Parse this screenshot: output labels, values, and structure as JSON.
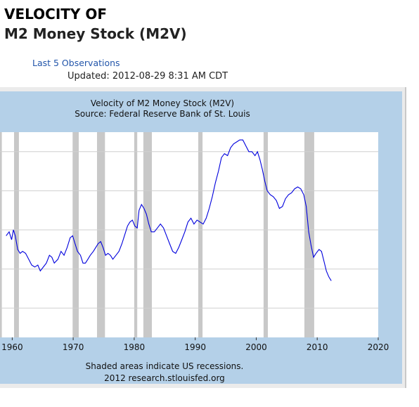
{
  "header": {
    "title_line1": "VELOCITY OF",
    "title_line2": "M2 Money Stock (M2V)",
    "last_obs_link": "Last 5 Observations",
    "updated": "Updated: 2012-08-29 8:31 AM CDT"
  },
  "colors": {
    "background": "#b4d0e8",
    "plot_background": "#ffffff",
    "line": "#0000dd",
    "recession_bar": "#c8c8c8",
    "frame": "#ebebeb"
  },
  "chart_data": {
    "type": "line",
    "title": "Velocity of M2 Money Stock (M2V)",
    "subtitle": "Source: Federal Reserve Bank of St. Louis",
    "xlabel": "",
    "ylabel": "",
    "xlim": [
      1958,
      2020
    ],
    "ylim": [
      1.2,
      2.25
    ],
    "x_ticks": [
      1960,
      1970,
      1980,
      1990,
      2000,
      2010,
      2020
    ],
    "y_gridlines": [
      1.35,
      1.55,
      1.75,
      1.95,
      2.15
    ],
    "grid": true,
    "legend": "none",
    "notes": [
      "Shaded areas indicate US recessions.",
      "2012 research.stlouisfed.org"
    ],
    "recessions": [
      [
        1957.6,
        1958.3
      ],
      [
        1960.3,
        1961.1
      ],
      [
        1969.9,
        1970.9
      ],
      [
        1973.9,
        1975.2
      ],
      [
        1980.0,
        1980.5
      ],
      [
        1981.5,
        1982.9
      ],
      [
        1990.5,
        1991.2
      ],
      [
        2001.2,
        2001.9
      ],
      [
        2007.9,
        2009.5
      ]
    ],
    "series": [
      {
        "points": [
          [
            1959.0,
            1.72
          ],
          [
            1959.5,
            1.74
          ],
          [
            1959.9,
            1.7
          ],
          [
            1960.2,
            1.75
          ],
          [
            1960.5,
            1.72
          ],
          [
            1960.9,
            1.65
          ],
          [
            1961.3,
            1.63
          ],
          [
            1961.7,
            1.64
          ],
          [
            1962.2,
            1.63
          ],
          [
            1962.7,
            1.6
          ],
          [
            1963.2,
            1.57
          ],
          [
            1963.7,
            1.56
          ],
          [
            1964.2,
            1.57
          ],
          [
            1964.6,
            1.54
          ],
          [
            1965.1,
            1.56
          ],
          [
            1965.6,
            1.58
          ],
          [
            1966.1,
            1.62
          ],
          [
            1966.5,
            1.61
          ],
          [
            1966.9,
            1.58
          ],
          [
            1967.5,
            1.6
          ],
          [
            1968.0,
            1.64
          ],
          [
            1968.5,
            1.62
          ],
          [
            1969.0,
            1.66
          ],
          [
            1969.5,
            1.71
          ],
          [
            1969.9,
            1.72
          ],
          [
            1970.3,
            1.68
          ],
          [
            1970.7,
            1.64
          ],
          [
            1971.2,
            1.62
          ],
          [
            1971.6,
            1.58
          ],
          [
            1972.0,
            1.58
          ],
          [
            1972.4,
            1.6
          ],
          [
            1972.8,
            1.62
          ],
          [
            1973.3,
            1.64
          ],
          [
            1973.7,
            1.66
          ],
          [
            1974.1,
            1.68
          ],
          [
            1974.5,
            1.69
          ],
          [
            1974.9,
            1.66
          ],
          [
            1975.3,
            1.62
          ],
          [
            1975.7,
            1.63
          ],
          [
            1976.1,
            1.62
          ],
          [
            1976.5,
            1.6
          ],
          [
            1977.0,
            1.62
          ],
          [
            1977.5,
            1.64
          ],
          [
            1978.0,
            1.68
          ],
          [
            1978.5,
            1.73
          ],
          [
            1978.9,
            1.77
          ],
          [
            1979.3,
            1.79
          ],
          [
            1979.7,
            1.8
          ],
          [
            1980.1,
            1.77
          ],
          [
            1980.5,
            1.76
          ],
          [
            1980.8,
            1.85
          ],
          [
            1981.2,
            1.88
          ],
          [
            1981.6,
            1.86
          ],
          [
            1982.0,
            1.83
          ],
          [
            1982.4,
            1.78
          ],
          [
            1982.8,
            1.74
          ],
          [
            1983.3,
            1.74
          ],
          [
            1983.8,
            1.76
          ],
          [
            1984.3,
            1.78
          ],
          [
            1984.8,
            1.76
          ],
          [
            1985.3,
            1.72
          ],
          [
            1985.8,
            1.68
          ],
          [
            1986.3,
            1.64
          ],
          [
            1986.8,
            1.63
          ],
          [
            1987.3,
            1.66
          ],
          [
            1987.8,
            1.7
          ],
          [
            1988.3,
            1.74
          ],
          [
            1988.8,
            1.79
          ],
          [
            1989.3,
            1.81
          ],
          [
            1989.8,
            1.78
          ],
          [
            1990.3,
            1.8
          ],
          [
            1990.8,
            1.79
          ],
          [
            1991.3,
            1.78
          ],
          [
            1991.8,
            1.81
          ],
          [
            1992.3,
            1.86
          ],
          [
            1992.8,
            1.92
          ],
          [
            1993.3,
            1.99
          ],
          [
            1993.8,
            2.05
          ],
          [
            1994.3,
            2.12
          ],
          [
            1994.8,
            2.14
          ],
          [
            1995.3,
            2.13
          ],
          [
            1995.8,
            2.17
          ],
          [
            1996.3,
            2.19
          ],
          [
            1996.8,
            2.2
          ],
          [
            1997.3,
            2.21
          ],
          [
            1997.8,
            2.21
          ],
          [
            1998.3,
            2.18
          ],
          [
            1998.8,
            2.15
          ],
          [
            1999.3,
            2.15
          ],
          [
            1999.8,
            2.13
          ],
          [
            2000.2,
            2.15
          ],
          [
            2000.6,
            2.11
          ],
          [
            2001.0,
            2.06
          ],
          [
            2001.4,
            2.0
          ],
          [
            2001.8,
            1.95
          ],
          [
            2002.3,
            1.93
          ],
          [
            2002.8,
            1.92
          ],
          [
            2003.3,
            1.9
          ],
          [
            2003.8,
            1.86
          ],
          [
            2004.3,
            1.87
          ],
          [
            2004.8,
            1.91
          ],
          [
            2005.3,
            1.93
          ],
          [
            2005.8,
            1.94
          ],
          [
            2006.3,
            1.96
          ],
          [
            2006.8,
            1.97
          ],
          [
            2007.3,
            1.96
          ],
          [
            2007.8,
            1.93
          ],
          [
            2008.2,
            1.87
          ],
          [
            2008.6,
            1.74
          ],
          [
            2009.0,
            1.67
          ],
          [
            2009.4,
            1.61
          ],
          [
            2009.8,
            1.63
          ],
          [
            2010.3,
            1.65
          ],
          [
            2010.7,
            1.64
          ],
          [
            2011.1,
            1.59
          ],
          [
            2011.5,
            1.54
          ],
          [
            2011.9,
            1.51
          ],
          [
            2012.3,
            1.49
          ]
        ]
      }
    ]
  }
}
